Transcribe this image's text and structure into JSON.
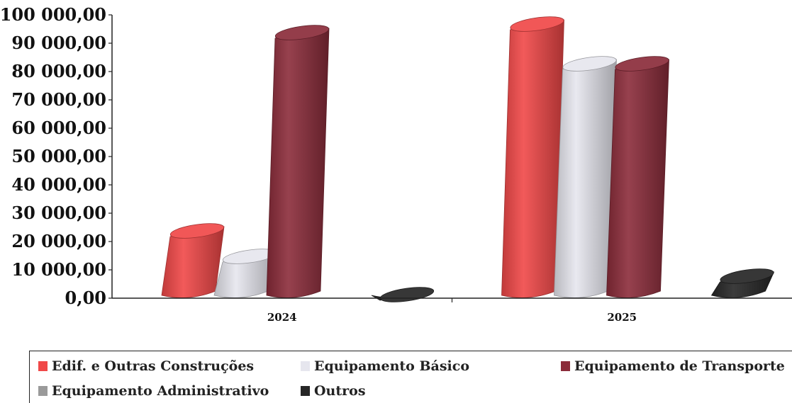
{
  "chart_data": {
    "type": "bar",
    "categories": [
      "2024",
      "2025"
    ],
    "series": [
      {
        "name": "Edif. e Outras Construções",
        "values": [
          24000,
          97000
        ],
        "color": "#f04848"
      },
      {
        "name": "Equipamento Básico",
        "values": [
          15000,
          83000
        ],
        "color": "#e6e6ee"
      },
      {
        "name": "Equipamento de Transporte",
        "values": [
          94000,
          83000
        ],
        "color": "#8b2c3a"
      },
      {
        "name": "Equipamento Administrativo",
        "values": [
          0,
          0
        ],
        "color": "#9a9a9a"
      },
      {
        "name": "Outros",
        "values": [
          1500,
          8000
        ],
        "color": "#262626"
      }
    ],
    "yticks": [
      "0,00",
      "10 000,00",
      "20 000,00",
      "30 000,00",
      "40 000,00",
      "50 000,00",
      "60 000,00",
      "70 000,00",
      "80 000,00",
      "90 000,00",
      "100 000,00"
    ],
    "ylim": [
      0,
      100000
    ],
    "title": "",
    "xlabel": "",
    "ylabel": "",
    "grid": false,
    "legend_position": "bottom",
    "style": "3d-cylinder"
  }
}
